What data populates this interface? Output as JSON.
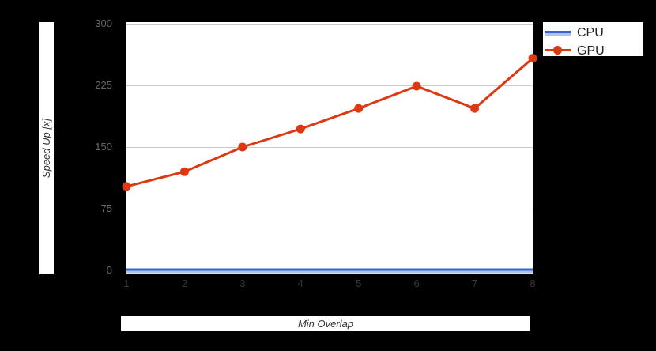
{
  "colors": {
    "page_background": "#000000",
    "plot_background": "#ffffff",
    "gridline": "#cccccc",
    "y_tick_text": "#666666",
    "x_tick_text": "#3a3a3a",
    "axis_title_text": "#333333",
    "legend_text": "#222222"
  },
  "chart_data": {
    "type": "line",
    "xlabel": "Min Overlap",
    "ylabel": "Speed Up [x]",
    "x": [
      1,
      2,
      3,
      4,
      5,
      6,
      7,
      8
    ],
    "xtick_labels": [
      "1",
      "2",
      "3",
      "4",
      "5",
      "6",
      "7",
      "8"
    ],
    "yticks": [
      0,
      75,
      150,
      225,
      300
    ],
    "ytick_labels": [
      "0",
      "75",
      "150",
      "225",
      "300"
    ],
    "ylim": [
      0,
      300
    ],
    "grid": true,
    "legend_position": "top-right",
    "series": [
      {
        "name": "CPU",
        "type": "area",
        "color": "#3366CC",
        "fill_color": "#AFC3EA",
        "marker": "none",
        "values": [
          1,
          1,
          1,
          1,
          1,
          1,
          1,
          1
        ]
      },
      {
        "name": "GPU",
        "type": "line",
        "color": "#DC3912",
        "marker": "circle",
        "values": [
          102,
          120,
          150,
          172,
          197,
          224,
          197,
          258
        ]
      }
    ]
  }
}
